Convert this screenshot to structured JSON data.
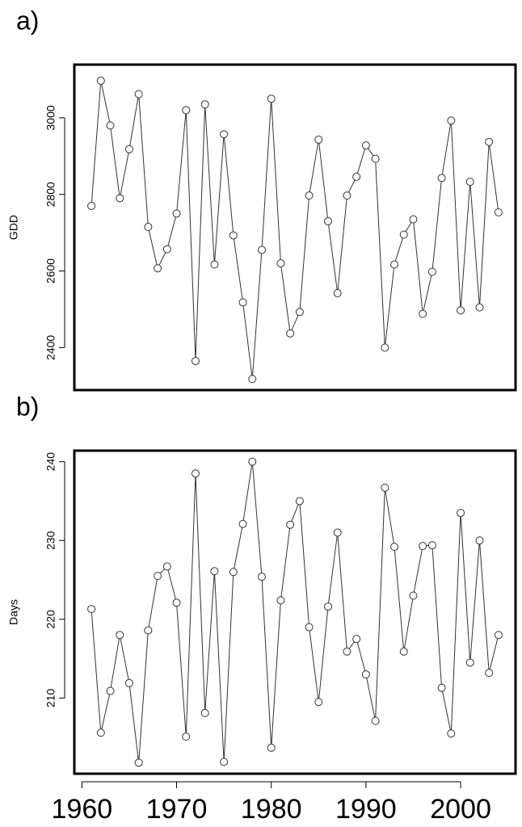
{
  "chart_data": [
    {
      "type": "line",
      "label": "a)",
      "ylabel": "GDD",
      "x": [
        1961,
        1962,
        1963,
        1964,
        1965,
        1966,
        1967,
        1968,
        1969,
        1970,
        1971,
        1972,
        1973,
        1974,
        1975,
        1976,
        1977,
        1978,
        1979,
        1980,
        1981,
        1982,
        1983,
        1984,
        1985,
        1986,
        1987,
        1988,
        1989,
        1990,
        1991,
        1992,
        1993,
        1994,
        1995,
        1996,
        1997,
        1998,
        1999,
        2000,
        2001,
        2002,
        2003,
        2004
      ],
      "values": [
        2770,
        3097,
        2980,
        2790,
        2918,
        3062,
        2715,
        2607,
        2657,
        2750,
        3020,
        2365,
        3035,
        2617,
        2957,
        2693,
        2518,
        2318,
        2655,
        3050,
        2620,
        2437,
        2493,
        2797,
        2943,
        2730,
        2542,
        2797,
        2846,
        2928,
        2893,
        2400,
        2617,
        2695,
        2735,
        2488,
        2598,
        2843,
        2993,
        2497,
        2833,
        2505,
        2937,
        2753
      ],
      "xlim": [
        1959.2,
        2005.8
      ],
      "ylim": [
        2289,
        3139
      ],
      "yticks": [
        2400,
        2600,
        2800,
        3000
      ],
      "color": "#333333"
    },
    {
      "type": "line",
      "label": "b)",
      "ylabel": "Days",
      "x": [
        1961,
        1962,
        1963,
        1964,
        1965,
        1966,
        1967,
        1968,
        1969,
        1970,
        1971,
        1972,
        1973,
        1974,
        1975,
        1976,
        1977,
        1978,
        1979,
        1980,
        1981,
        1982,
        1983,
        1984,
        1985,
        1986,
        1987,
        1988,
        1989,
        1990,
        1991,
        1992,
        1993,
        1994,
        1995,
        1996,
        1997,
        1998,
        1999,
        2000,
        2001,
        2002,
        2003,
        2004
      ],
      "values": [
        221.3,
        205.6,
        210.9,
        218.0,
        211.9,
        201.8,
        218.6,
        225.5,
        226.7,
        222.1,
        205.1,
        238.5,
        208.1,
        226.1,
        201.9,
        226.0,
        232.1,
        240.0,
        225.4,
        203.7,
        222.4,
        232.0,
        235.0,
        219.0,
        209.5,
        221.6,
        231.0,
        215.9,
        217.5,
        213.0,
        207.1,
        236.7,
        229.2,
        215.9,
        223.0,
        229.3,
        229.4,
        211.3,
        205.5,
        233.5,
        214.5,
        230.0,
        213.2,
        218.0
      ],
      "xlim": [
        1959.2,
        2005.8
      ],
      "xticks": [
        1960,
        1970,
        1980,
        1990,
        2000
      ],
      "ylim": [
        200.4,
        241.4
      ],
      "yticks": [
        210,
        220,
        230,
        240
      ],
      "color": "#333333"
    }
  ]
}
